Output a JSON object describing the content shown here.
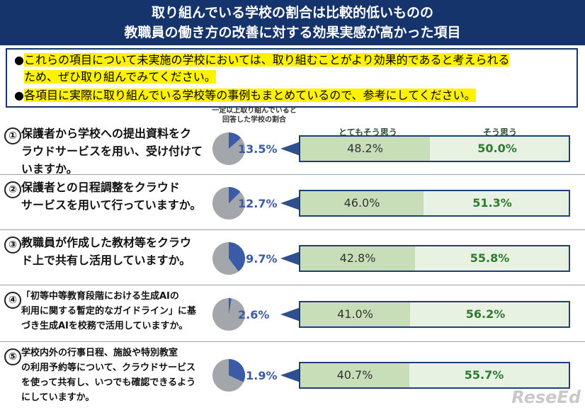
{
  "header": {
    "title_line1": "取り組んでいる学校の割合は比較的低いものの",
    "title_line2": "教職員の働き方の改善に対する効果実感が高かった項目"
  },
  "notice": {
    "line1": "これらの項目について未実施の学校においては、取り組むことがより効果的であると考えられる",
    "line2": "ため、ぜひ取り組んでみてください。",
    "line3": "各項目に実際に取り組んでいる学校等の事例もまとめているので、参考にしてください。"
  },
  "pie_header": "一定以上取り組んでいると回答した学校の割合",
  "columns": {
    "agree_strong": "とてもそう思う",
    "agree": "そう思う"
  },
  "colors": {
    "pie_fill": "#3b5ba8",
    "pie_rest": "#a3a7ab",
    "bar_strong": "#c8deb8",
    "bar_agree": "#e7f2e2",
    "accent": "#15346b"
  },
  "items": [
    {
      "num": "①",
      "lines": [
        "保護者から学校への提出資料をク",
        "ラウドサービスを用い、受け付けて",
        "いますか。"
      ],
      "pct_label": "13.5%",
      "pct": 13.5,
      "strong": 48.2,
      "strong_label": "48.2%",
      "agree": 50.0,
      "agree_label": "50.0%"
    },
    {
      "num": "②",
      "lines": [
        "保護者との日程調整をクラウド",
        "サービスを用いて行っていますか。"
      ],
      "pct_label": "12.7%",
      "pct": 12.7,
      "strong": 46.0,
      "strong_label": "46.0%",
      "agree": 51.3,
      "agree_label": "51.3%"
    },
    {
      "num": "③",
      "lines": [
        "教職員が作成した教材等をクラウ",
        "ド上で共有し活用していますか。"
      ],
      "pct_label": "39.7%",
      "pct": 39.7,
      "strong": 42.8,
      "strong_label": "42.8%",
      "agree": 55.8,
      "agree_label": "55.8%"
    },
    {
      "num": "④",
      "lines": [
        "「初等中等教育段階における生成AIの",
        "利用に関する暫定的なガイドライン」に基",
        "づき生成AIを校務で活用していますか。"
      ],
      "pct_label": "2.6%",
      "pct": 2.6,
      "strong": 41.0,
      "strong_label": "41.0%",
      "agree": 56.2,
      "agree_label": "56.2%"
    },
    {
      "num": "⑤",
      "lines": [
        "学校内外の行事日程、施設や特別教室",
        "の利用予約等について、クラウドサービス",
        "を使って共有し、いつでも確認できるよう",
        "にしていますか。"
      ],
      "pct_label": "31.9%",
      "pct": 31.9,
      "strong": 40.7,
      "strong_label": "40.7%",
      "agree": 55.7,
      "agree_label": "55.7%"
    }
  ],
  "watermark": "ReseEd"
}
